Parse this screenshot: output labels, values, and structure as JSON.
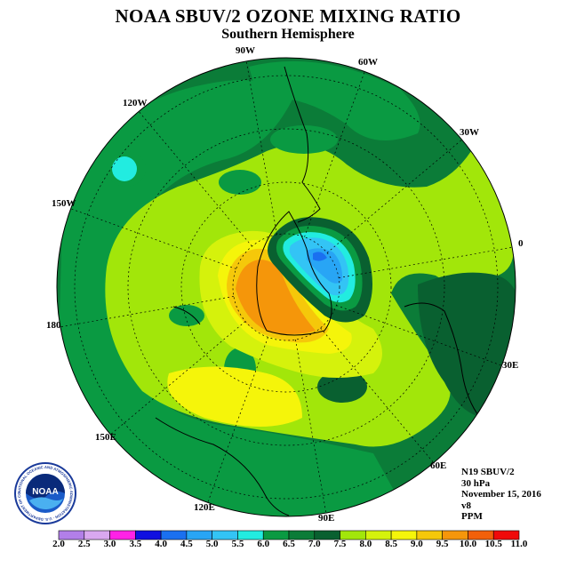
{
  "title": "NOAA SBUV/2 OZONE MIXING RATIO",
  "subtitle": "Southern Hemisphere",
  "longitude_labels": {
    "w90": "90W",
    "w60": "60W",
    "w30": "30W",
    "e0": "0",
    "e30": "30E",
    "e60": "60E",
    "e90": "90E",
    "e120": "120E",
    "e150": "150E",
    "l180": "180",
    "w150": "150W",
    "w120": "120W"
  },
  "info": {
    "satellite": "N19 SBUV/2",
    "level": "30 hPa",
    "date": "November 15, 2016",
    "version": "v8",
    "units": "PPM"
  },
  "logo": {
    "text": "NOAA",
    "ring_text": "NATIONAL OCEANIC AND ATMOSPHERIC ADMINISTRATION · U.S. DEPARTMENT OF COMMERCE"
  },
  "colorbar": {
    "labels": [
      "2.0",
      "2.5",
      "3.0",
      "3.5",
      "4.0",
      "4.5",
      "5.0",
      "5.5",
      "6.0",
      "6.5",
      "7.0",
      "7.5",
      "8.0",
      "8.5",
      "9.0",
      "9.5",
      "10.0",
      "10.5",
      "11.0"
    ],
    "colors": [
      "#b27fe8",
      "#d9a8f0",
      "#ff22e6",
      "#1010e0",
      "#1a70f0",
      "#28a5f5",
      "#33c4f5",
      "#22ece0",
      "#0a9a42",
      "#0b7c38",
      "#096030",
      "#a2e60a",
      "#d5f20c",
      "#f5f50a",
      "#f5c80a",
      "#f5960a",
      "#f2600a",
      "#f00a0a",
      "#7a4a2a"
    ]
  },
  "field_colors": {
    "background_edge": "#0b7c38",
    "dark_green": "#096030",
    "mid_green": "#0a9a42",
    "lime": "#a2e60a",
    "yellow_green": "#d5f20c",
    "yellow": "#f5f50a",
    "gold": "#f5c80a",
    "orange": "#f5960a",
    "cyan": "#22ece0",
    "light_blue": "#33c4f5",
    "blue": "#28a5f5",
    "deep_blue": "#1a70f0"
  }
}
